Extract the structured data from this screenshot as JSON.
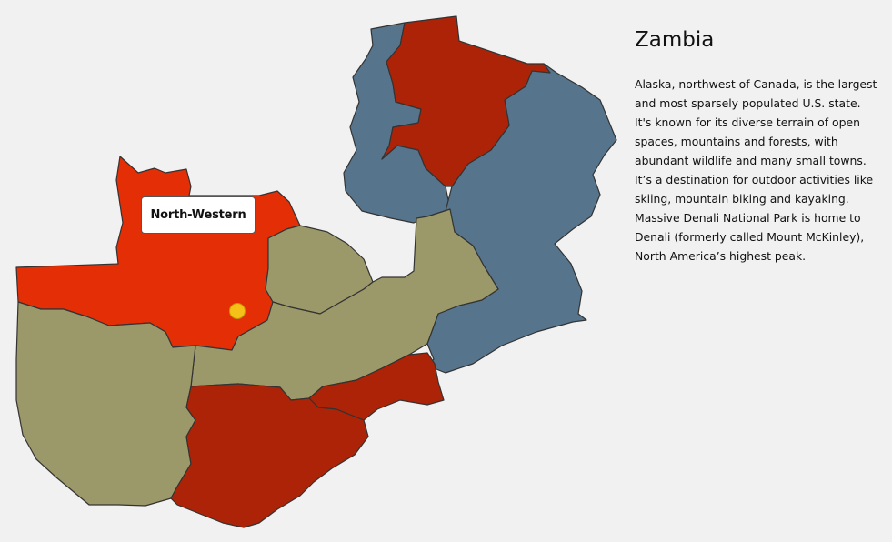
{
  "country": {
    "name": "Zambia",
    "description": "Alaska, northwest of Canada, is the largest and most sparsely populated U.S. state. It's known for its diverse terrain of open spaces, mountains and forests, with abundant wildlife and many small towns. It’s a destination for outdoor activities like skiing, mountain biking and kayaking. Massive Denali National Park is home to Denali (formerly called Mount McKinley), North America’s highest peak."
  },
  "tooltip": {
    "label": "North-Western"
  },
  "colors": {
    "background": "#f1f1f1",
    "highlighted": "#e42e06",
    "dark_red": "#ad2307",
    "olive": "#9b9869",
    "slate_blue": "#56758c",
    "marker": "#f5c018",
    "border": "#333333"
  },
  "regions": [
    {
      "id": "north-western",
      "state": "highlighted"
    },
    {
      "id": "western",
      "state": "olive"
    },
    {
      "id": "copperbelt",
      "state": "olive"
    },
    {
      "id": "central",
      "state": "olive"
    },
    {
      "id": "southern",
      "state": "dark_red"
    },
    {
      "id": "lusaka",
      "state": "dark_red"
    },
    {
      "id": "eastern",
      "state": "slate_blue"
    },
    {
      "id": "northern",
      "state": "dark_red"
    },
    {
      "id": "luapula",
      "state": "slate_blue"
    },
    {
      "id": "muchinga",
      "state": "slate_blue"
    }
  ]
}
